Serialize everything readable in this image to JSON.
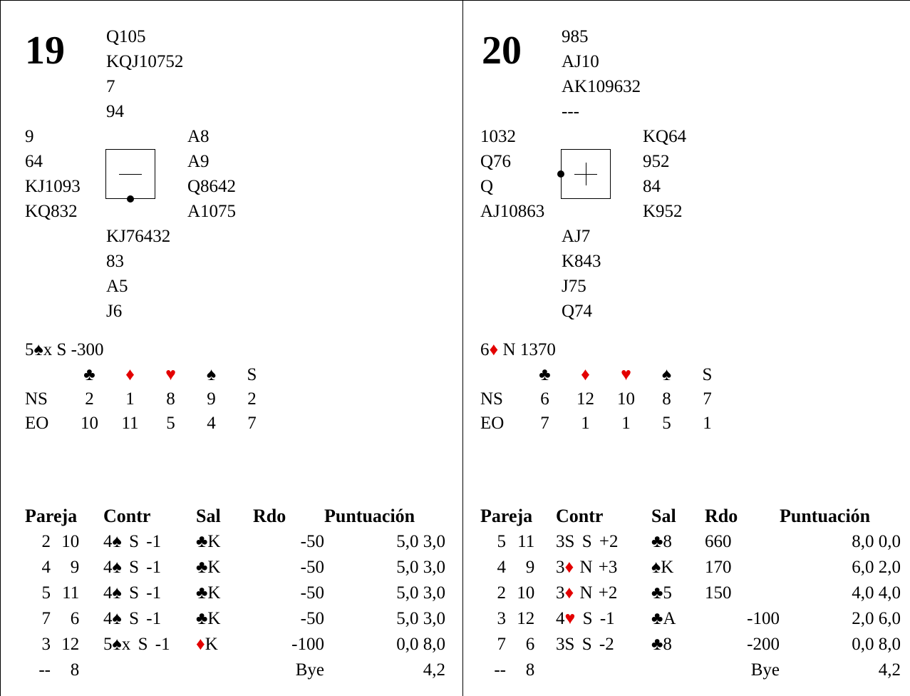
{
  "boards": [
    {
      "number": "19",
      "north": [
        "Q105",
        "KQJ10752",
        "7",
        "94"
      ],
      "west": [
        "9",
        "64",
        "KJ1093",
        "KQ832"
      ],
      "east": [
        "A8",
        "A9",
        "Q8642",
        "A1075"
      ],
      "south": [
        "KJ76432",
        "83",
        "A5",
        "J6"
      ],
      "vuln_symbol": "minus",
      "dealer": "S",
      "par": {
        "level": "5",
        "suit": "♠",
        "suit_color": "black",
        "rest": "x S -300"
      },
      "tricks": {
        "header": [
          "♣",
          "♦",
          "♥",
          "♠",
          "S"
        ],
        "rows": [
          {
            "label": "NS",
            "values": [
              "2",
              "1",
              "8",
              "9",
              "2"
            ]
          },
          {
            "label": "EO",
            "values": [
              "10",
              "11",
              "5",
              "4",
              "7"
            ]
          }
        ]
      },
      "results_header": [
        "Pareja",
        "Contr",
        "Sal",
        "Rdo",
        "Puntuación"
      ],
      "results": [
        {
          "ns": "2",
          "ew": "10",
          "level": "4",
          "suit": "♠",
          "suit_color": "black",
          "dbl": "",
          "decl": "S",
          "res": "-1",
          "lead_suit": "♣",
          "lead_color": "black",
          "lead_rank": "K",
          "score_ns": "",
          "score_ew": "-50",
          "mp_ns": "5,0",
          "mp_ew": "3,0"
        },
        {
          "ns": "4",
          "ew": "9",
          "level": "4",
          "suit": "♠",
          "suit_color": "black",
          "dbl": "",
          "decl": "S",
          "res": "-1",
          "lead_suit": "♣",
          "lead_color": "black",
          "lead_rank": "K",
          "score_ns": "",
          "score_ew": "-50",
          "mp_ns": "5,0",
          "mp_ew": "3,0"
        },
        {
          "ns": "5",
          "ew": "11",
          "level": "4",
          "suit": "♠",
          "suit_color": "black",
          "dbl": "",
          "decl": "S",
          "res": "-1",
          "lead_suit": "♣",
          "lead_color": "black",
          "lead_rank": "K",
          "score_ns": "",
          "score_ew": "-50",
          "mp_ns": "5,0",
          "mp_ew": "3,0"
        },
        {
          "ns": "7",
          "ew": "6",
          "level": "4",
          "suit": "♠",
          "suit_color": "black",
          "dbl": "",
          "decl": "S",
          "res": "-1",
          "lead_suit": "♣",
          "lead_color": "black",
          "lead_rank": "K",
          "score_ns": "",
          "score_ew": "-50",
          "mp_ns": "5,0",
          "mp_ew": "3,0"
        },
        {
          "ns": "3",
          "ew": "12",
          "level": "5",
          "suit": "♠",
          "suit_color": "black",
          "dbl": "x",
          "decl": "S",
          "res": "-1",
          "lead_suit": "♦",
          "lead_color": "red",
          "lead_rank": "K",
          "score_ns": "",
          "score_ew": "-100",
          "mp_ns": "0,0",
          "mp_ew": "8,0"
        }
      ],
      "bye": {
        "ns": "--",
        "ew": "8",
        "label": "Bye",
        "mp": "4,2"
      }
    },
    {
      "number": "20",
      "north": [
        "985",
        "AJ10",
        "AK109632",
        "---"
      ],
      "west": [
        "1032",
        "Q76",
        "Q",
        "AJ10863"
      ],
      "east": [
        "KQ64",
        "952",
        "84",
        "K952"
      ],
      "south": [
        "AJ7",
        "K843",
        "J75",
        "Q74"
      ],
      "vuln_symbol": "plus",
      "dealer": "W",
      "par": {
        "level": "6",
        "suit": "♦",
        "suit_color": "red",
        "rest": " N 1370"
      },
      "tricks": {
        "header": [
          "♣",
          "♦",
          "♥",
          "♠",
          "S"
        ],
        "rows": [
          {
            "label": "NS",
            "values": [
              "6",
              "12",
              "10",
              "8",
              "7"
            ]
          },
          {
            "label": "EO",
            "values": [
              "7",
              "1",
              "1",
              "5",
              "1"
            ]
          }
        ]
      },
      "results_header": [
        "Pareja",
        "Contr",
        "Sal",
        "Rdo",
        "Puntuación"
      ],
      "results": [
        {
          "ns": "5",
          "ew": "11",
          "level": "3S",
          "suit": "",
          "suit_color": "black",
          "dbl": "",
          "decl": "S",
          "res": "+2",
          "lead_suit": "♣",
          "lead_color": "black",
          "lead_rank": "8",
          "score_ns": "660",
          "score_ew": "",
          "mp_ns": "8,0",
          "mp_ew": "0,0"
        },
        {
          "ns": "4",
          "ew": "9",
          "level": "3",
          "suit": "♦",
          "suit_color": "red",
          "dbl": "",
          "decl": "N",
          "res": "+3",
          "lead_suit": "♠",
          "lead_color": "black",
          "lead_rank": "K",
          "score_ns": "170",
          "score_ew": "",
          "mp_ns": "6,0",
          "mp_ew": "2,0"
        },
        {
          "ns": "2",
          "ew": "10",
          "level": "3",
          "suit": "♦",
          "suit_color": "red",
          "dbl": "",
          "decl": "N",
          "res": "+2",
          "lead_suit": "♣",
          "lead_color": "black",
          "lead_rank": "5",
          "score_ns": "150",
          "score_ew": "",
          "mp_ns": "4,0",
          "mp_ew": "4,0"
        },
        {
          "ns": "3",
          "ew": "12",
          "level": "4",
          "suit": "♥",
          "suit_color": "red",
          "dbl": "",
          "decl": "S",
          "res": "-1",
          "lead_suit": "♣",
          "lead_color": "black",
          "lead_rank": "A",
          "score_ns": "",
          "score_ew": "-100",
          "mp_ns": "2,0",
          "mp_ew": "6,0"
        },
        {
          "ns": "7",
          "ew": "6",
          "level": "3S",
          "suit": "",
          "suit_color": "black",
          "dbl": "",
          "decl": "S",
          "res": "-2",
          "lead_suit": "♣",
          "lead_color": "black",
          "lead_rank": "8",
          "score_ns": "",
          "score_ew": "-200",
          "mp_ns": "0,0",
          "mp_ew": "8,0"
        }
      ],
      "bye": {
        "ns": "--",
        "ew": "8",
        "label": "Bye",
        "mp": "4,2"
      }
    }
  ]
}
